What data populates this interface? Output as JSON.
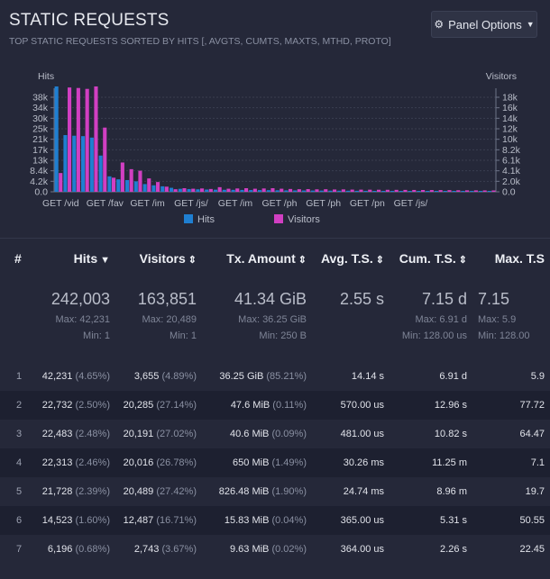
{
  "panel": {
    "title": "STATIC REQUESTS",
    "subtitle": "TOP STATIC REQUESTS SORTED BY HITS [, AVGTS, CUMTS, MAXTS, MTHD, PROTO]",
    "options_label": "Panel Options",
    "options_icon": "gear-icon",
    "options_caret": "caret-down-icon"
  },
  "colors": {
    "background": "#252839",
    "hits": "#1f7fd1",
    "visitors": "#d13fc2"
  },
  "chart_data": {
    "type": "bar",
    "left_axis_title": "Hits",
    "right_axis_title": "Visitors",
    "left_ticks": [
      "0.0",
      "4.2k",
      "8.4k",
      "13k",
      "17k",
      "21k",
      "25k",
      "30k",
      "34k",
      "38k"
    ],
    "left_ylim": [
      0,
      42231
    ],
    "right_ticks": [
      "0.0",
      "2.0k",
      "4.1k",
      "6.1k",
      "8.2k",
      "10k",
      "12k",
      "14k",
      "16k",
      "18k"
    ],
    "right_ylim": [
      0,
      20489
    ],
    "x_tick_labels": [
      "GET /vid",
      "GET /fav",
      "GET /im",
      "GET /js/",
      "GET /im",
      "GET /ph",
      "GET /ph",
      "GET /pn",
      "GET /js/"
    ],
    "series": [
      {
        "name": "Hits",
        "values": [
          42231,
          22732,
          22483,
          22313,
          21728,
          14523,
          6196,
          5000,
          4700,
          4200,
          3100,
          2600,
          2200,
          1600,
          1200,
          1100,
          1000,
          900,
          850,
          800,
          780,
          750,
          700,
          680,
          650,
          600,
          560,
          540,
          520,
          500,
          480,
          460,
          440,
          420,
          400,
          380,
          360,
          340,
          320,
          310,
          300,
          290,
          280,
          270,
          260,
          250,
          240,
          230,
          220,
          210
        ]
      },
      {
        "name": "Visitors",
        "values": [
          3655,
          20285,
          20191,
          20016,
          20489,
          12487,
          2743,
          5700,
          4400,
          4100,
          2600,
          1900,
          1000,
          500,
          700,
          600,
          650,
          550,
          900,
          600,
          650,
          700,
          600,
          650,
          700,
          600,
          550,
          500,
          520,
          480,
          500,
          450,
          470,
          430,
          420,
          410,
          400,
          390,
          380,
          370,
          360,
          350,
          340,
          330,
          320,
          300,
          290,
          280,
          270,
          260
        ]
      }
    ]
  },
  "table": {
    "headers": [
      {
        "label": "#",
        "sort": ""
      },
      {
        "label": "Hits",
        "sort": "▼"
      },
      {
        "label": "Visitors",
        "sort": "⇕"
      },
      {
        "label": "Tx. Amount",
        "sort": "⇕"
      },
      {
        "label": "Avg. T.S.",
        "sort": "⇕"
      },
      {
        "label": "Cum. T.S.",
        "sort": "⇕"
      },
      {
        "label": "Max. T.S",
        "sort": ""
      }
    ],
    "summary": {
      "hits": {
        "total": "242,003",
        "max": "Max: 42,231",
        "min": "Min: 1"
      },
      "visitors": {
        "total": "163,851",
        "max": "Max: 20,489",
        "min": "Min: 1"
      },
      "tx": {
        "total": "41.34 GiB",
        "max": "Max: 36.25 GiB",
        "min": "Min: 250 B"
      },
      "avg": {
        "total": "2.55 s"
      },
      "cum": {
        "total": "7.15 d",
        "max": "Max: 6.91 d",
        "min": "Min: 128.00 us"
      },
      "maxts": {
        "total": "7.15",
        "max": "Max: 5.9",
        "min": "Min: 128.00"
      }
    },
    "rows": [
      {
        "idx": "1",
        "hits": "42,231",
        "hits_pct": "(4.65%)",
        "visitors": "3,655",
        "visitors_pct": "(4.89%)",
        "tx": "36.25 GiB",
        "tx_pct": "(85.21%)",
        "avg": "14.14 s",
        "cum": "6.91 d",
        "max": "5.9"
      },
      {
        "idx": "2",
        "hits": "22,732",
        "hits_pct": "(2.50%)",
        "visitors": "20,285",
        "visitors_pct": "(27.14%)",
        "tx": "47.6 MiB",
        "tx_pct": "(0.11%)",
        "avg": "570.00 us",
        "cum": "12.96 s",
        "max": "77.72"
      },
      {
        "idx": "3",
        "hits": "22,483",
        "hits_pct": "(2.48%)",
        "visitors": "20,191",
        "visitors_pct": "(27.02%)",
        "tx": "40.6 MiB",
        "tx_pct": "(0.09%)",
        "avg": "481.00 us",
        "cum": "10.82 s",
        "max": "64.47"
      },
      {
        "idx": "4",
        "hits": "22,313",
        "hits_pct": "(2.46%)",
        "visitors": "20,016",
        "visitors_pct": "(26.78%)",
        "tx": "650 MiB",
        "tx_pct": "(1.49%)",
        "avg": "30.26 ms",
        "cum": "11.25 m",
        "max": "7.1"
      },
      {
        "idx": "5",
        "hits": "21,728",
        "hits_pct": "(2.39%)",
        "visitors": "20,489",
        "visitors_pct": "(27.42%)",
        "tx": "826.48 MiB",
        "tx_pct": "(1.90%)",
        "avg": "24.74 ms",
        "cum": "8.96 m",
        "max": "19.7"
      },
      {
        "idx": "6",
        "hits": "14,523",
        "hits_pct": "(1.60%)",
        "visitors": "12,487",
        "visitors_pct": "(16.71%)",
        "tx": "15.83 MiB",
        "tx_pct": "(0.04%)",
        "avg": "365.00 us",
        "cum": "5.31 s",
        "max": "50.55"
      },
      {
        "idx": "7",
        "hits": "6,196",
        "hits_pct": "(0.68%)",
        "visitors": "2,743",
        "visitors_pct": "(3.67%)",
        "tx": "9.63 MiB",
        "tx_pct": "(0.02%)",
        "avg": "364.00 us",
        "cum": "2.26 s",
        "max": "22.45"
      }
    ]
  }
}
